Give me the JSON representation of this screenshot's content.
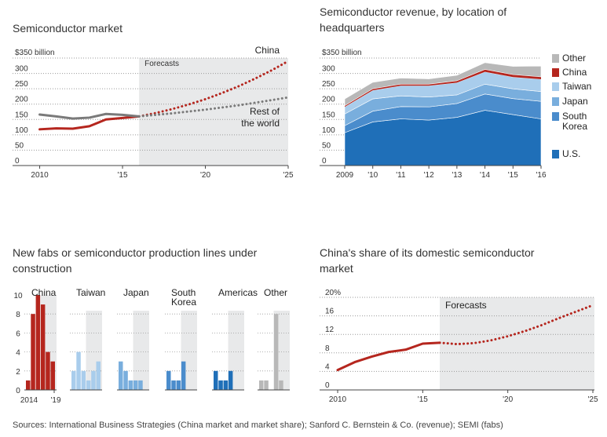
{
  "colors": {
    "china_red": "#b5261e",
    "rest_gray": "#7a7a7a",
    "forecast_shade": "#e8e9ea",
    "us_blue": "#1f6fb8",
    "south_korea_blue": "#4a8ccc",
    "japan_blue": "#79aedd",
    "taiwan_blue": "#a9cdec",
    "other_gray": "#b8b8b8",
    "grid": "#9a9a9a"
  },
  "sources": "Sources: International Business Strategies (China market and market share); Sanford C. Bernstein & Co. (revenue); SEMI (fabs)",
  "chart_data": [
    {
      "id": "market",
      "type": "line",
      "title": "Semiconductor market",
      "forecast_label": "Forecasts",
      "forecast_start": 2016,
      "xlim": [
        2009.5,
        2025
      ],
      "ylim": [
        0,
        350
      ],
      "y_ticks": [
        "$350 billion",
        "300",
        "250",
        "200",
        "150",
        "100",
        "50",
        "0"
      ],
      "x_ticks": [
        "2010",
        "'15",
        "'20",
        "'25"
      ],
      "series": [
        {
          "name": "China",
          "color": "#b5261e",
          "x": [
            2010,
            2011,
            2012,
            2013,
            2014,
            2015,
            2016
          ],
          "y": [
            118,
            121,
            120,
            128,
            150,
            155,
            160
          ]
        },
        {
          "name": "China",
          "color": "#b5261e",
          "forecast": true,
          "x": [
            2016,
            2017,
            2018,
            2019,
            2020,
            2021,
            2022,
            2023,
            2024,
            2025
          ],
          "y": [
            160,
            171,
            184,
            199,
            216,
            236,
            258,
            283,
            310,
            340
          ]
        },
        {
          "name": "Rest of the world",
          "color": "#7a7a7a",
          "x": [
            2010,
            2011,
            2012,
            2013,
            2014,
            2015,
            2016
          ],
          "y": [
            166,
            160,
            153,
            156,
            168,
            165,
            160
          ]
        },
        {
          "name": "Rest of the world",
          "color": "#7a7a7a",
          "forecast": true,
          "x": [
            2016,
            2018,
            2020,
            2022,
            2024,
            2025
          ],
          "y": [
            160,
            170,
            182,
            196,
            213,
            222
          ]
        }
      ],
      "annotations": [
        "China",
        "Rest of",
        "the world"
      ]
    },
    {
      "id": "revenue",
      "type": "area",
      "title_lines": [
        "Semiconductor revenue, by location of",
        "headquarters"
      ],
      "x": [
        2009,
        2010,
        2011,
        2012,
        2013,
        2014,
        2015,
        2016
      ],
      "x_ticks": [
        "2009",
        "'10",
        "'11",
        "'12",
        "'13",
        "'14",
        "'15",
        "'16"
      ],
      "ylim": [
        0,
        350
      ],
      "y_ticks": [
        "$350 billion",
        "300",
        "250",
        "200",
        "150",
        "100",
        "50",
        "0"
      ],
      "series": [
        {
          "name": "U.S.",
          "color": "#1f6fb8",
          "values": [
            107,
            142,
            152,
            148,
            157,
            180,
            166,
            152
          ]
        },
        {
          "name": "South Korea",
          "color": "#4a8ccc",
          "values": [
            23,
            35,
            40,
            43,
            45,
            53,
            52,
            57
          ]
        },
        {
          "name": "Japan",
          "color": "#79aedd",
          "values": [
            38,
            40,
            35,
            32,
            28,
            32,
            32,
            32
          ]
        },
        {
          "name": "Taiwan",
          "color": "#a9cdec",
          "values": [
            23,
            28,
            33,
            37,
            40,
            40,
            38,
            40
          ]
        },
        {
          "name": "China",
          "color": "#b5261e",
          "values": [
            4,
            5,
            5,
            5,
            6,
            8,
            8,
            8
          ]
        },
        {
          "name": "Other",
          "color": "#b8b8b8",
          "values": [
            22,
            21,
            20,
            17,
            18,
            22,
            27,
            35
          ]
        }
      ],
      "legend_lines": [
        {
          "key": "Other",
          "text": [
            "Other"
          ]
        },
        {
          "key": "China",
          "text": [
            "China"
          ]
        },
        {
          "key": "Taiwan",
          "text": [
            "Taiwan"
          ]
        },
        {
          "key": "Japan",
          "text": [
            "Japan"
          ]
        },
        {
          "key": "South Korea",
          "text": [
            "South",
            "Korea"
          ]
        },
        {
          "key": "U.S.",
          "text": [
            "U.S."
          ]
        }
      ]
    },
    {
      "id": "fabs",
      "type": "bar",
      "title_lines": [
        "New fabs or semiconductor production lines under",
        "construction"
      ],
      "x": [
        2014,
        2015,
        2016,
        2017,
        2018,
        2019
      ],
      "ylim": [
        0,
        10
      ],
      "y_ticks": [
        "10",
        "8",
        "6",
        "4",
        "2",
        "0"
      ],
      "x_ticks": [
        "2014",
        "'19"
      ],
      "forecast_start": 2017,
      "groups": [
        {
          "name": "China",
          "color": "#b5261e",
          "values": [
            1,
            8,
            10,
            9,
            4,
            3
          ]
        },
        {
          "name": "Taiwan",
          "color": "#a9cdec",
          "values": [
            2,
            4,
            2,
            1,
            2,
            3
          ]
        },
        {
          "name": "Japan",
          "color": "#79aedd",
          "values": [
            3,
            2,
            1,
            1,
            1,
            0
          ]
        },
        {
          "name": "South Korea",
          "label_lines": [
            "South",
            "Korea"
          ],
          "color": "#4a8ccc",
          "values": [
            2,
            1,
            1,
            3,
            0,
            0
          ]
        },
        {
          "name": "Americas",
          "color": "#1f6fb8",
          "values": [
            2,
            1,
            1,
            2,
            0,
            0
          ]
        },
        {
          "name": "Other",
          "color": "#b8b8b8",
          "values": [
            1,
            1,
            0,
            8,
            1,
            0
          ]
        }
      ]
    },
    {
      "id": "share",
      "type": "line",
      "title_lines": [
        "China's share of its domestic semiconductor",
        "market"
      ],
      "forecast_label": "Forecasts",
      "forecast_start": 2016,
      "xlim": [
        2010,
        2025
      ],
      "ylim": [
        0,
        20
      ],
      "y_ticks": [
        "20%",
        "16",
        "12",
        "8",
        "4",
        "0"
      ],
      "x_ticks": [
        "2010",
        "'15",
        "'20",
        "'25"
      ],
      "series": [
        {
          "name": "China share",
          "color": "#b5261e",
          "x": [
            2010,
            2011,
            2012,
            2013,
            2014,
            2015,
            2016
          ],
          "y": [
            4.3,
            6.0,
            7.2,
            8.2,
            8.7,
            10.0,
            10.2
          ]
        },
        {
          "name": "China share",
          "color": "#b5261e",
          "forecast": true,
          "x": [
            2016,
            2017,
            2018,
            2019,
            2020,
            2021,
            2022,
            2023,
            2024,
            2025
          ],
          "y": [
            10.2,
            9.9,
            10.1,
            10.7,
            11.6,
            12.7,
            14.0,
            15.5,
            16.9,
            18.3
          ]
        }
      ]
    }
  ]
}
